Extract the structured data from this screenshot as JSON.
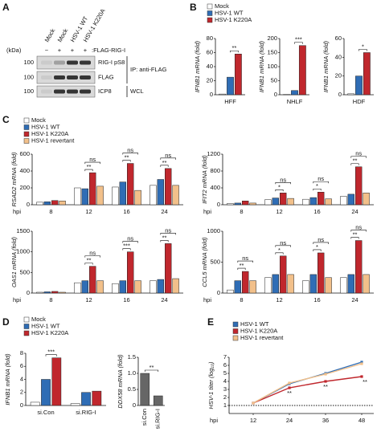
{
  "panel_labels": [
    "A",
    "B",
    "C",
    "D",
    "E"
  ],
  "blot": {
    "columns": [
      "Mock",
      "Mock",
      "HSV-1 WT",
      "HSV-1 K220A"
    ],
    "signs": [
      "−",
      "+",
      "+",
      "+"
    ],
    "construct": ":FLAG-RIG-I",
    "unit": "(kDa)",
    "rows": [
      {
        "label": "RIG-I pS8",
        "marker": "100"
      },
      {
        "label": "FLAG",
        "marker": "100"
      },
      {
        "label": "ICP8",
        "marker": "100"
      }
    ],
    "groups": [
      "IP: anti-FLAG",
      "WCL"
    ]
  },
  "chart_data": [
    {
      "type": "bar",
      "ylabel": "IFNB1 mRNA (fold)",
      "categories": [
        "HFF"
      ],
      "legend": true,
      "series": [
        {
          "name": "Mock",
          "color": "#ffffff",
          "values": [
            1
          ]
        },
        {
          "name": "HSV-1 WT",
          "color": "#2f6db5",
          "values": [
            25
          ]
        },
        {
          "name": "HSV-1 K220A",
          "color": "#c0272d",
          "values": [
            58
          ]
        }
      ],
      "ylim": [
        0,
        80
      ],
      "yticks": [
        0,
        20,
        40,
        60,
        80
      ],
      "annotations": [
        {
          "text": "**",
          "category": 0,
          "series": [
            1,
            2
          ]
        }
      ]
    },
    {
      "type": "bar",
      "ylabel": "IFNB1 mRNA (fold)",
      "categories": [
        "NHLF"
      ],
      "series": [
        {
          "color": "#ffffff",
          "values": [
            1
          ]
        },
        {
          "color": "#2f6db5",
          "values": [
            15
          ]
        },
        {
          "color": "#c0272d",
          "values": [
            175
          ]
        }
      ],
      "ylim": [
        0,
        200
      ],
      "yticks": [
        0,
        50,
        100,
        150,
        200
      ],
      "annotations": [
        {
          "text": "***",
          "category": 0,
          "series": [
            1,
            2
          ]
        }
      ]
    },
    {
      "type": "bar",
      "ylabel": "IFNB1 mRNA (fold)",
      "categories": [
        "HDF"
      ],
      "series": [
        {
          "color": "#ffffff",
          "values": [
            1
          ]
        },
        {
          "color": "#2f6db5",
          "values": [
            20
          ]
        },
        {
          "color": "#c0272d",
          "values": [
            45
          ]
        }
      ],
      "ylim": [
        0,
        60
      ],
      "yticks": [
        0,
        20,
        40,
        60
      ],
      "annotations": [
        {
          "text": "*",
          "category": 0,
          "series": [
            1,
            2
          ]
        }
      ]
    },
    {
      "type": "bar",
      "ylabel": "RSAD2 mRNA (fold)",
      "xlabel": "hpi",
      "categories": [
        "8",
        "12",
        "16",
        "24"
      ],
      "legend": true,
      "series": [
        {
          "name": "Mock",
          "color": "#ffffff",
          "values": [
            30,
            200,
            210,
            230
          ]
        },
        {
          "name": "HSV-1 WT",
          "color": "#2f6db5",
          "values": [
            35,
            190,
            270,
            300
          ]
        },
        {
          "name": "HSV-1 K220A",
          "color": "#c0272d",
          "values": [
            50,
            380,
            490,
            430
          ]
        },
        {
          "name": "HSV-1 revertant",
          "color": "#f2c08a",
          "values": [
            45,
            220,
            170,
            230
          ]
        }
      ],
      "ylim": [
        0,
        600
      ],
      "yticks": [
        0,
        200,
        400,
        600
      ],
      "annotations": [
        {
          "text": "**",
          "category": 1,
          "series": [
            1,
            2
          ]
        },
        {
          "text": "ns",
          "category": 1,
          "series": [
            1,
            3
          ]
        },
        {
          "text": "**",
          "category": 2,
          "series": [
            1,
            2
          ]
        },
        {
          "text": "ns",
          "category": 2,
          "series": [
            1,
            3
          ]
        },
        {
          "text": "**",
          "category": 3,
          "series": [
            1,
            2
          ]
        },
        {
          "text": "ns",
          "category": 3,
          "series": [
            1,
            3
          ]
        }
      ]
    },
    {
      "type": "bar",
      "ylabel": "IFIT2 mRNA (fold)",
      "xlabel": "hpi",
      "categories": [
        "8",
        "12",
        "16",
        "24"
      ],
      "series": [
        {
          "color": "#ffffff",
          "values": [
            30,
            120,
            130,
            200
          ]
        },
        {
          "color": "#2f6db5",
          "values": [
            40,
            160,
            170,
            250
          ]
        },
        {
          "color": "#c0272d",
          "values": [
            90,
            280,
            300,
            900
          ]
        },
        {
          "color": "#f2c08a",
          "values": [
            40,
            150,
            140,
            280
          ]
        }
      ],
      "ylim": [
        0,
        1200
      ],
      "yticks": [
        0,
        400,
        800,
        1200
      ],
      "annotations": [
        {
          "text": "*",
          "category": 1,
          "series": [
            1,
            2
          ]
        },
        {
          "text": "ns",
          "category": 1,
          "series": [
            1,
            3
          ]
        },
        {
          "text": "*",
          "category": 2,
          "series": [
            1,
            2
          ]
        },
        {
          "text": "ns",
          "category": 2,
          "series": [
            1,
            3
          ]
        },
        {
          "text": "**",
          "category": 3,
          "series": [
            1,
            2
          ]
        },
        {
          "text": "ns",
          "category": 3,
          "series": [
            1,
            3
          ]
        }
      ]
    },
    {
      "type": "bar",
      "ylabel": "OAS1 mRNA (fold)",
      "xlabel": "hpi",
      "categories": [
        "8",
        "12",
        "16",
        "24"
      ],
      "series": [
        {
          "color": "#ffffff",
          "values": [
            20,
            250,
            230,
            300
          ]
        },
        {
          "color": "#2f6db5",
          "values": [
            30,
            300,
            300,
            330
          ]
        },
        {
          "color": "#c0272d",
          "values": [
            40,
            650,
            1000,
            1200
          ]
        },
        {
          "color": "#f2c08a",
          "values": [
            20,
            300,
            300,
            350
          ]
        }
      ],
      "ylim": [
        0,
        1500
      ],
      "yticks": [
        0,
        500,
        1000,
        1500
      ],
      "annotations": [
        {
          "text": "**",
          "category": 1,
          "series": [
            1,
            2
          ]
        },
        {
          "text": "ns",
          "category": 1,
          "series": [
            1,
            3
          ]
        },
        {
          "text": "***",
          "category": 2,
          "series": [
            1,
            2
          ]
        },
        {
          "text": "ns",
          "category": 2,
          "series": [
            1,
            3
          ]
        },
        {
          "text": "**",
          "category": 3,
          "series": [
            1,
            2
          ]
        },
        {
          "text": "ns",
          "category": 3,
          "series": [
            1,
            3
          ]
        }
      ]
    },
    {
      "type": "bar",
      "ylabel": "CCL5 mRNA (fold)",
      "xlabel": "hpi",
      "categories": [
        "8",
        "12",
        "16",
        "24"
      ],
      "series": [
        {
          "color": "#ffffff",
          "values": [
            50,
            250,
            200,
            250
          ]
        },
        {
          "color": "#2f6db5",
          "values": [
            200,
            300,
            300,
            300
          ]
        },
        {
          "color": "#c0272d",
          "values": [
            350,
            600,
            650,
            850
          ]
        },
        {
          "color": "#f2c08a",
          "values": [
            200,
            300,
            250,
            300
          ]
        }
      ],
      "ylim": [
        0,
        1000
      ],
      "yticks": [
        0,
        500,
        1000
      ],
      "annotations": [
        {
          "text": "**",
          "category": 0,
          "series": [
            1,
            2
          ]
        },
        {
          "text": "ns",
          "category": 0,
          "series": [
            1,
            3
          ]
        },
        {
          "text": "*",
          "category": 1,
          "series": [
            1,
            2
          ]
        },
        {
          "text": "ns",
          "category": 1,
          "series": [
            1,
            3
          ]
        },
        {
          "text": "*",
          "category": 2,
          "series": [
            1,
            2
          ]
        },
        {
          "text": "ns",
          "category": 2,
          "series": [
            1,
            3
          ]
        },
        {
          "text": "**",
          "category": 3,
          "series": [
            1,
            2
          ]
        },
        {
          "text": "ns",
          "category": 3,
          "series": [
            1,
            3
          ]
        }
      ]
    },
    {
      "type": "bar",
      "ylabel": "IFNB1 mRNA (fold)",
      "categories": [
        "si.Con",
        "si.RIG-I"
      ],
      "legend": true,
      "series": [
        {
          "name": "Mock",
          "color": "#ffffff",
          "values": [
            0.5,
            0.3
          ]
        },
        {
          "name": "HSV-1 WT",
          "color": "#2f6db5",
          "values": [
            4,
            2
          ]
        },
        {
          "name": "HSV-1 K220A",
          "color": "#c0272d",
          "values": [
            7.3,
            2.2
          ]
        }
      ],
      "ylim": [
        0,
        8
      ],
      "yticks": [
        0,
        2,
        4,
        6,
        8
      ],
      "annotations": [
        {
          "text": "***",
          "category": 0,
          "series": [
            1,
            2
          ]
        }
      ]
    },
    {
      "type": "bar",
      "ylabel": "DDX58 mRNA (fold)",
      "categories": [
        "si.Con",
        "si.RIG-I"
      ],
      "series": [
        {
          "color": "#666666",
          "values": [
            1,
            0.3
          ]
        }
      ],
      "ylim": [
        0,
        1.5
      ],
      "yticks": [
        0,
        0.5,
        {
          "value": 1,
          "label": "1.0"
        },
        1.5
      ],
      "annotations": [
        {
          "text": "**",
          "category": 0,
          "category_to": 1
        }
      ]
    },
    {
      "type": "line",
      "ylabel": "HSV-1 titer (log₁₀)",
      "xlabel": "hpi",
      "x": [
        12,
        24,
        36,
        48
      ],
      "legend": true,
      "series": [
        {
          "name": "HSV-1 WT",
          "color": "#2f6db5",
          "values": [
            1.3,
            3.7,
            5,
            6.4
          ]
        },
        {
          "name": "HSV-1 K220A",
          "color": "#c0272d",
          "values": [
            1.3,
            3.2,
            4,
            4.6
          ]
        },
        {
          "name": "HSV-1 revertant",
          "color": "#f2c08a",
          "values": [
            1.3,
            3.8,
            4.9,
            6.2
          ]
        }
      ],
      "xlim": [
        4,
        52
      ],
      "xticks": [
        12,
        24,
        36,
        48
      ],
      "ylim": [
        0,
        7
      ],
      "yticks": [
        1,
        2,
        3,
        4,
        5,
        6,
        7
      ],
      "reference_line": 1,
      "annotations": [
        {
          "text": "**",
          "point": 1
        },
        {
          "text": "**",
          "point": 2
        },
        {
          "text": "**",
          "point": 3
        }
      ]
    }
  ]
}
